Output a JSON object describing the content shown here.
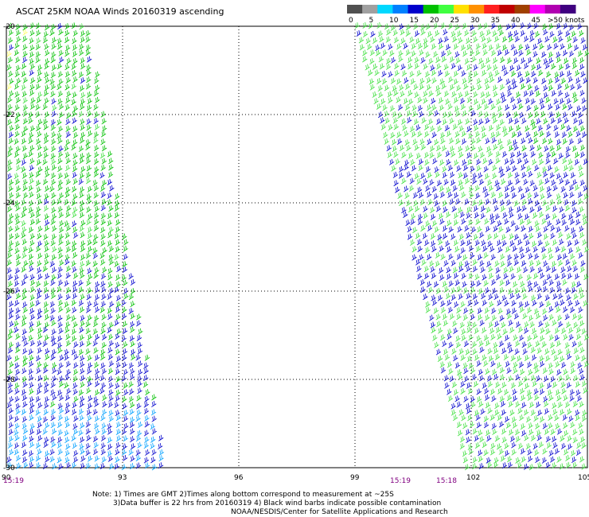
{
  "title": "ASCAT 25KM NOAA Winds 20160319 ascending",
  "legend": {
    "labels": [
      "0",
      "5",
      "10",
      "15",
      "20",
      "25",
      "30",
      "35",
      "40",
      "45",
      ">50 knots"
    ],
    "colors": [
      "#505050",
      "#a0a0a0",
      "#00d8ff",
      "#0080ff",
      "#0000cc",
      "#00c000",
      "#40ff40",
      "#ffe000",
      "#ff9000",
      "#ff2020",
      "#c00000",
      "#a04000",
      "#ff00ff",
      "#b000b0",
      "#400080"
    ]
  },
  "map": {
    "lon_ticks": [
      "90",
      "93",
      "96",
      "99",
      "102",
      "105"
    ],
    "lat_ticks": [
      "-20",
      "-22",
      "-24",
      "-26",
      "-28",
      "-30"
    ],
    "lon_range": [
      90,
      105
    ],
    "lat_range": [
      -30,
      -20
    ],
    "grid": "dotted"
  },
  "pass_times": [
    "15:19",
    "15:19",
    "15:18"
  ],
  "notes": {
    "line1": "Note: 1) Times are GMT 2)Times along bottom correspond to measurement at ~25S",
    "line2": "3)Data buffer is 22 hrs from 20160319 4) Black wind barbs indicate possible contamination",
    "line3": "NOAA/NESDIS/Center for Satellite Applications and Research"
  },
  "wind_colors": {
    "green": "#00c000",
    "bright_green": "#40e040",
    "blue": "#0000cc",
    "light_blue": "#00a0ff",
    "yellow": "#ffff60"
  }
}
